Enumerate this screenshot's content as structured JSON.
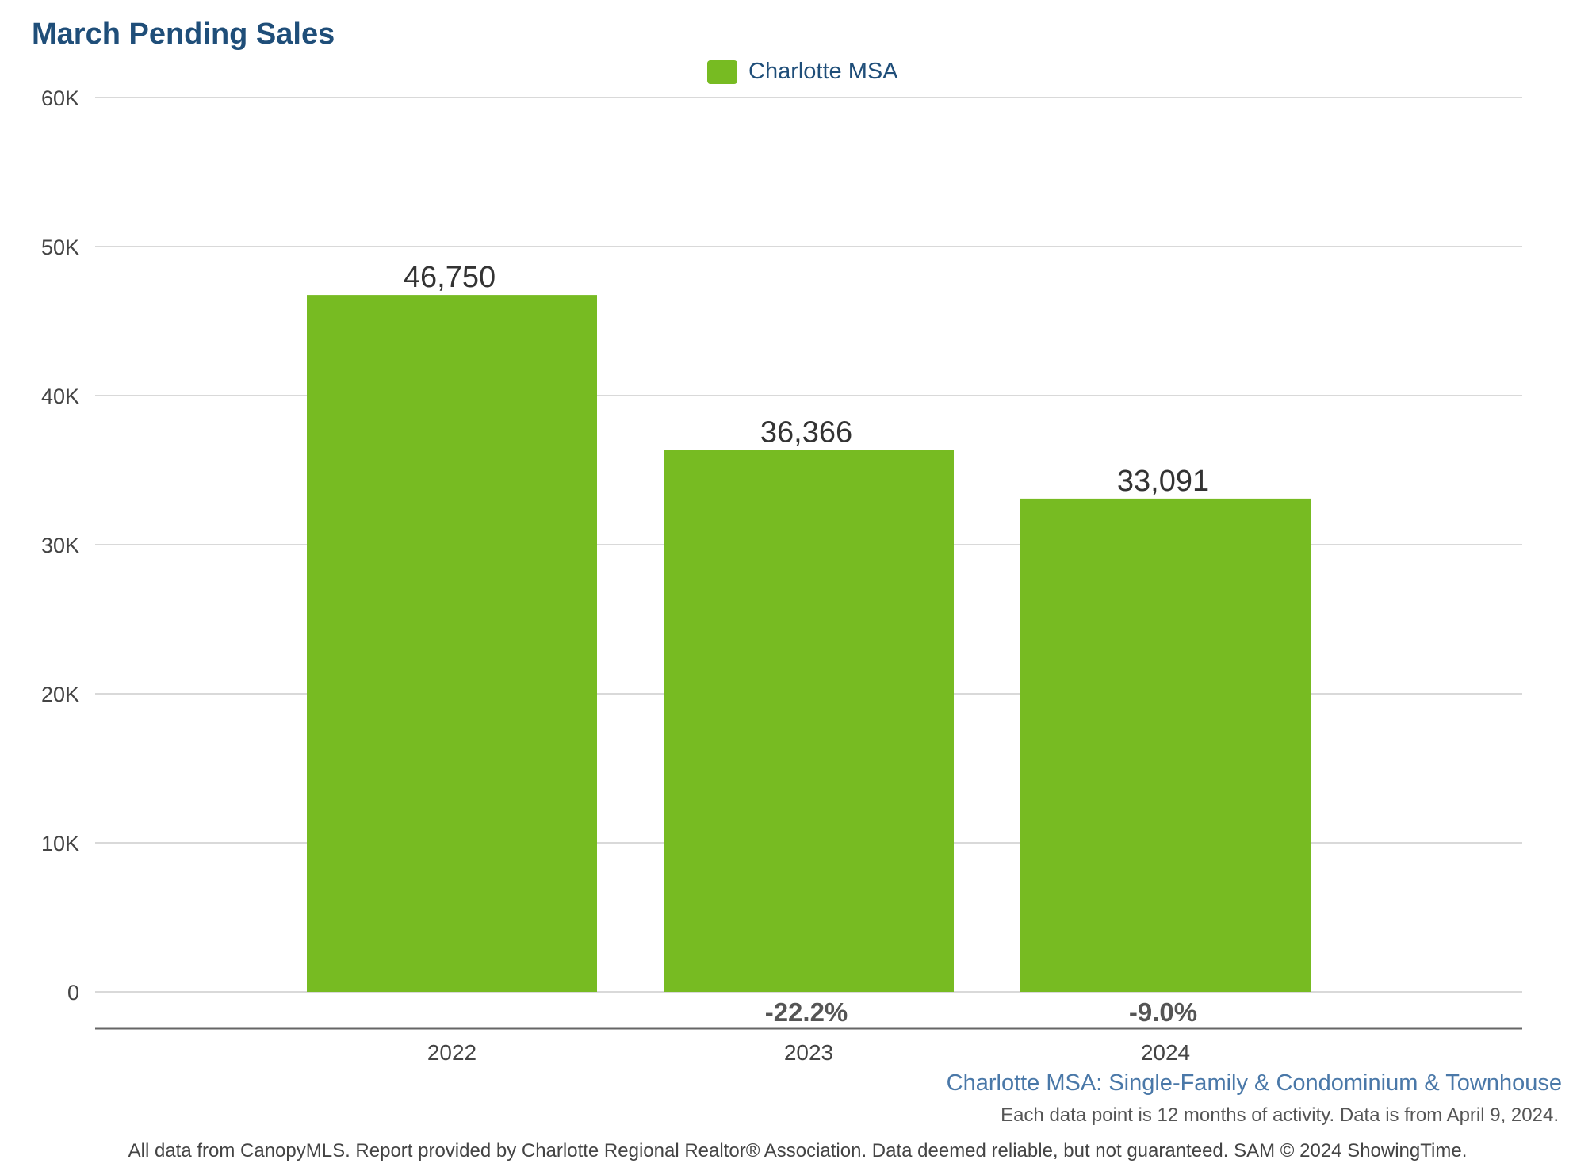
{
  "chart_data": {
    "type": "bar",
    "title": "March Pending Sales",
    "categories": [
      "2022",
      "2023",
      "2024"
    ],
    "series": [
      {
        "name": "Charlotte MSA",
        "values": [
          46750,
          36366,
          33091
        ],
        "color": "#77bb22"
      }
    ],
    "value_labels": [
      "46,750",
      "36,366",
      "33,091"
    ],
    "change_labels": [
      "",
      "-22.2%",
      "-9.0%"
    ],
    "ylim": [
      0,
      60000
    ],
    "yticks": [
      {
        "value": 0,
        "label": "0"
      },
      {
        "value": 10000,
        "label": "10K"
      },
      {
        "value": 20000,
        "label": "20K"
      },
      {
        "value": 30000,
        "label": "30K"
      },
      {
        "value": 40000,
        "label": "40K"
      },
      {
        "value": 50000,
        "label": "50K"
      },
      {
        "value": 60000,
        "label": "60K"
      }
    ],
    "grid": true,
    "legend_position": "top-center",
    "xlabel": "",
    "ylabel": ""
  },
  "subtitle": "Charlotte MSA: Single-Family & Condominium & Townhouse",
  "note": "Each data point is 12 months of activity. Data is from April 9, 2024.",
  "footer": "All data from CanopyMLS. Report provided by Charlotte Regional Realtor® Association. Data deemed reliable, but not guaranteed. SAM © 2024 ShowingTime."
}
